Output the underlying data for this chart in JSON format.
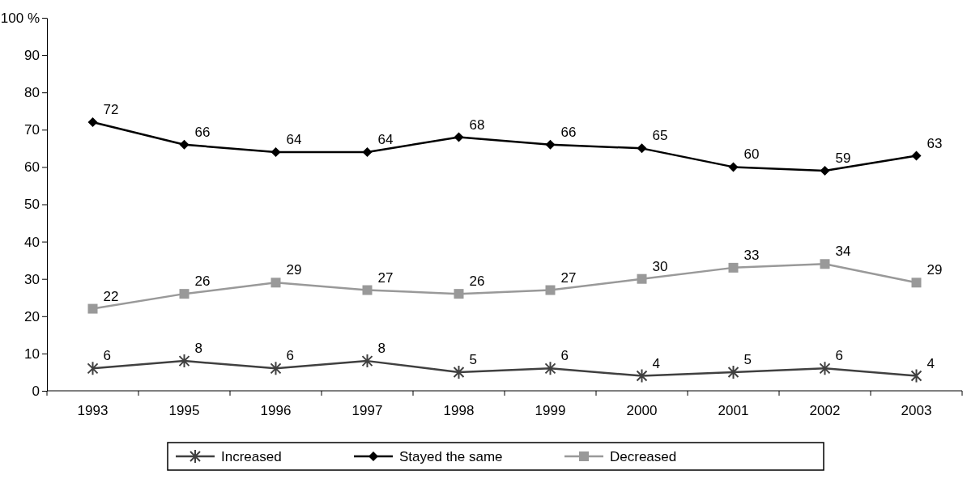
{
  "chart_data": {
    "type": "line",
    "categories": [
      "1993",
      "1995",
      "1996",
      "1997",
      "1998",
      "1999",
      "2000",
      "2001",
      "2002",
      "2003"
    ],
    "series": [
      {
        "name": "Increased",
        "color": "#404040",
        "marker": "cross",
        "values": [
          6,
          8,
          6,
          8,
          5,
          6,
          4,
          5,
          6,
          4
        ]
      },
      {
        "name": "Stayed the same",
        "color": "#000000",
        "marker": "diamond",
        "values": [
          72,
          66,
          64,
          64,
          68,
          66,
          65,
          60,
          59,
          63
        ]
      },
      {
        "name": "Decreased",
        "color": "#999999",
        "marker": "square",
        "values": [
          22,
          26,
          29,
          27,
          26,
          27,
          30,
          33,
          34,
          29
        ]
      }
    ],
    "ylim": [
      0,
      100
    ],
    "yticks": [
      0,
      10,
      20,
      30,
      40,
      50,
      60,
      70,
      80,
      90,
      {
        "value": 100,
        "label": "100 %"
      }
    ],
    "grid": false,
    "legend": "bottom",
    "data_labels": true,
    "line_style": "solid"
  }
}
